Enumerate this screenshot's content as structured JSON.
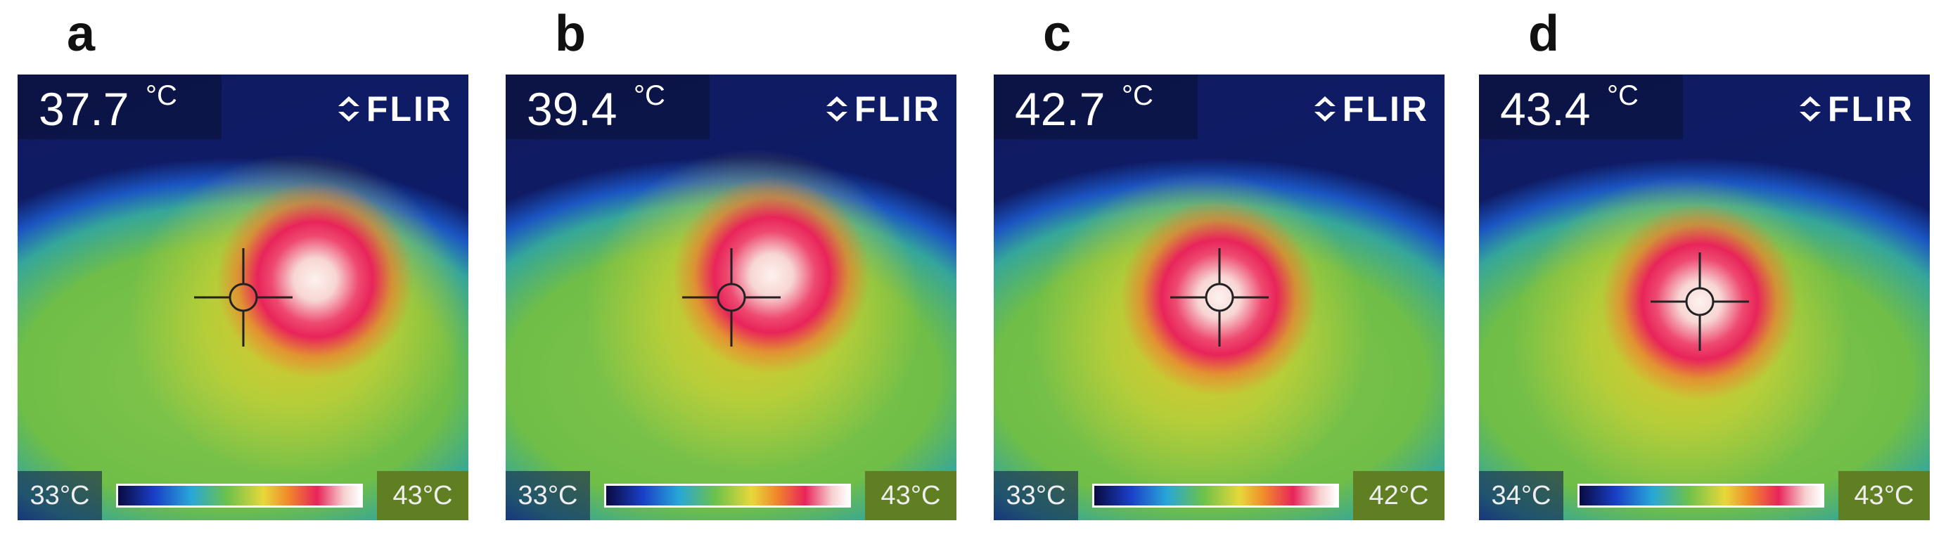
{
  "panels": [
    {
      "label": "a",
      "reading_value": "37.7",
      "reading_unit": "°C",
      "brand": "FLIR",
      "scale_min": "33°C",
      "scale_max": "43°C"
    },
    {
      "label": "b",
      "reading_value": "39.4",
      "reading_unit": "°C",
      "brand": "FLIR",
      "scale_min": "33°C",
      "scale_max": "43°C"
    },
    {
      "label": "c",
      "reading_value": "42.7",
      "reading_unit": "°C",
      "brand": "FLIR",
      "scale_min": "33°C",
      "scale_max": "42°C"
    },
    {
      "label": "d",
      "reading_value": "43.4",
      "reading_unit": "°C",
      "brand": "FLIR",
      "scale_min": "34°C",
      "scale_max": "43°C"
    }
  ]
}
